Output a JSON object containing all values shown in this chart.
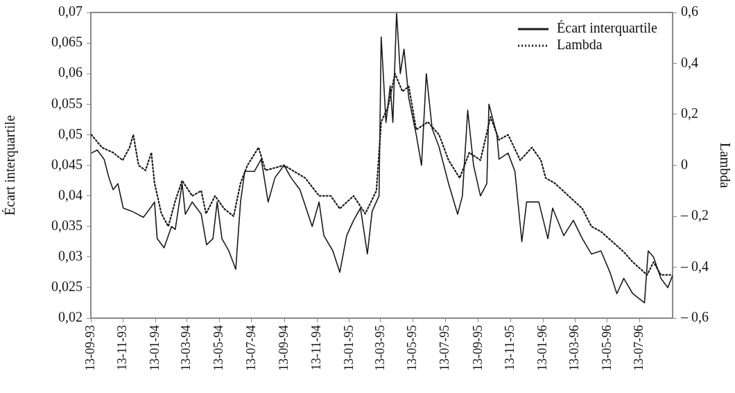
{
  "chart_data": {
    "type": "line",
    "ylabel": "Écart interquartile",
    "y2label": "Lambda",
    "xlim": [
      "1993-09-13",
      "1996-09-13"
    ],
    "xticks": [
      {
        "value": "1993-09-13",
        "label": "13-09-93"
      },
      {
        "value": "1993-11-13",
        "label": "13-11-93"
      },
      {
        "value": "1994-01-13",
        "label": "13-01-94"
      },
      {
        "value": "1994-03-13",
        "label": "13-03-94"
      },
      {
        "value": "1994-05-13",
        "label": "13-05-94"
      },
      {
        "value": "1994-07-13",
        "label": "13-07-94"
      },
      {
        "value": "1994-09-13",
        "label": "13-09-94"
      },
      {
        "value": "1994-11-13",
        "label": "13-11-94"
      },
      {
        "value": "1995-01-13",
        "label": "13-01-95"
      },
      {
        "value": "1995-03-13",
        "label": "13-03-95"
      },
      {
        "value": "1995-05-13",
        "label": "13-05-95"
      },
      {
        "value": "1995-07-13",
        "label": "13-07-95"
      },
      {
        "value": "1995-09-13",
        "label": "13-09-95"
      },
      {
        "value": "1995-11-13",
        "label": "13-11-95"
      },
      {
        "value": "1996-01-13",
        "label": "13-01-96"
      },
      {
        "value": "1996-03-13",
        "label": "13-03-96"
      },
      {
        "value": "1996-05-13",
        "label": "13-05-96"
      },
      {
        "value": "1996-07-13",
        "label": "13-07-96"
      }
    ],
    "ylim": [
      0.02,
      0.07
    ],
    "yticks": [
      {
        "value": 0.02,
        "label": "0,02"
      },
      {
        "value": 0.025,
        "label": "0,025"
      },
      {
        "value": 0.03,
        "label": "0,03"
      },
      {
        "value": 0.035,
        "label": "0,035"
      },
      {
        "value": 0.04,
        "label": "0,04"
      },
      {
        "value": 0.045,
        "label": "0,045"
      },
      {
        "value": 0.05,
        "label": "0,05"
      },
      {
        "value": 0.055,
        "label": "0,055"
      },
      {
        "value": 0.06,
        "label": "0,06"
      },
      {
        "value": 0.065,
        "label": "0,065"
      },
      {
        "value": 0.07,
        "label": "0,07"
      }
    ],
    "y2lim": [
      -0.6,
      0.6
    ],
    "y2ticks": [
      {
        "value": -0.6,
        "label": "– 0,6"
      },
      {
        "value": -0.4,
        "label": "– 0,4"
      },
      {
        "value": -0.2,
        "label": "– 0,2"
      },
      0,
      {
        "value": 0.2,
        "label": "0,2"
      },
      {
        "value": 0.4,
        "label": "0,4"
      },
      {
        "value": 0.6,
        "label": "0,6"
      }
    ],
    "grid": false,
    "legend": "top right",
    "marker": "none",
    "series": [
      {
        "name": "Écart interquartile",
        "color": "#1a1a1a",
        "line_style": "solid",
        "x": [
          "1993-09-14",
          "1993-09-25",
          "1993-10-08",
          "1993-10-17",
          "1993-10-25",
          "1993-11-03",
          "1993-11-13",
          "1993-11-29",
          "1993-12-21",
          "1994-01-03",
          "1994-01-11",
          "1994-01-16",
          "1994-01-29",
          "1994-02-12",
          "1994-02-19",
          "1994-03-04",
          "1994-03-10",
          "1994-03-23",
          "1994-04-09",
          "1994-04-19",
          "1994-05-01",
          "1994-05-09",
          "1994-05-18",
          "1994-05-31",
          "1994-06-13",
          "1994-06-22",
          "1994-06-30",
          "1994-07-18",
          "1994-07-31",
          "1994-08-13",
          "1994-08-26",
          "1994-09-12",
          "1994-09-25",
          "1994-10-12",
          "1994-11-04",
          "1994-11-17",
          "1994-11-26",
          "1994-12-13",
          "1994-12-26",
          "1995-01-08",
          "1995-01-21",
          "1995-02-03",
          "1995-02-16",
          "1995-02-25",
          "1995-03-10",
          "1995-03-14",
          "1995-03-23",
          "1995-03-31",
          "1995-04-05",
          "1995-04-12",
          "1995-04-19",
          "1995-04-26",
          "1995-05-05",
          "1995-05-19",
          "1995-05-29",
          "1995-06-07",
          "1995-06-18",
          "1995-07-01",
          "1995-07-19",
          "1995-08-05",
          "1995-08-14",
          "1995-08-24",
          "1995-09-04",
          "1995-09-17",
          "1995-09-29",
          "1995-10-03",
          "1995-10-18",
          "1995-10-22",
          "1995-11-08",
          "1995-11-21",
          "1995-12-04",
          "1995-12-13",
          "1996-01-05",
          "1996-01-22",
          "1996-01-31",
          "1996-02-21",
          "1996-03-10",
          "1996-03-27",
          "1996-04-13",
          "1996-05-01",
          "1996-05-18",
          "1996-05-31",
          "1996-06-13",
          "1996-06-30",
          "1996-07-22",
          "1996-07-29",
          "1996-08-08",
          "1996-08-22",
          "1996-09-04",
          "1996-09-13"
        ],
        "values": [
          0.047,
          0.0475,
          0.046,
          0.043,
          0.041,
          0.042,
          0.038,
          0.0375,
          0.0365,
          0.038,
          0.039,
          0.033,
          0.0315,
          0.035,
          0.0345,
          0.042,
          0.037,
          0.039,
          0.037,
          0.032,
          0.033,
          0.039,
          0.033,
          0.031,
          0.028,
          0.039,
          0.044,
          0.044,
          0.046,
          0.039,
          0.043,
          0.045,
          0.043,
          0.041,
          0.035,
          0.039,
          0.0335,
          0.031,
          0.0275,
          0.0335,
          0.036,
          0.038,
          0.0305,
          0.0375,
          0.04,
          0.066,
          0.052,
          0.058,
          0.052,
          0.07,
          0.06,
          0.064,
          0.056,
          0.05,
          0.045,
          0.06,
          0.051,
          0.048,
          0.042,
          0.037,
          0.04,
          0.054,
          0.045,
          0.04,
          0.042,
          0.055,
          0.05,
          0.046,
          0.047,
          0.044,
          0.0325,
          0.039,
          0.039,
          0.033,
          0.038,
          0.0335,
          0.036,
          0.033,
          0.0305,
          0.031,
          0.0275,
          0.024,
          0.0265,
          0.024,
          0.0225,
          0.031,
          0.03,
          0.0265,
          0.025,
          0.027
        ]
      },
      {
        "name": "Lambda",
        "color": "#1a1a1a",
        "line_style": "dotted",
        "axis": "y2",
        "x": [
          "1993-09-14",
          "1993-10-04",
          "1993-10-25",
          "1993-11-12",
          "1993-11-25",
          "1993-12-02",
          "1993-12-12",
          "1993-12-25",
          "1994-01-05",
          "1994-01-11",
          "1994-01-24",
          "1994-02-06",
          "1994-02-19",
          "1994-03-04",
          "1994-03-23",
          "1994-04-09",
          "1994-04-18",
          "1994-05-05",
          "1994-05-22",
          "1994-06-09",
          "1994-06-22",
          "1994-07-05",
          "1994-07-26",
          "1994-08-08",
          "1994-09-12",
          "1994-10-22",
          "1994-11-17",
          "1994-12-09",
          "1994-12-26",
          "1995-01-21",
          "1995-02-12",
          "1995-03-05",
          "1995-03-14",
          "1995-03-27",
          "1995-04-09",
          "1995-04-23",
          "1995-05-05",
          "1995-05-19",
          "1995-06-10",
          "1995-07-01",
          "1995-07-19",
          "1995-08-09",
          "1995-08-27",
          "1995-09-17",
          "1995-10-06",
          "1995-10-22",
          "1995-11-08",
          "1995-12-01",
          "1995-12-23",
          "1996-01-09",
          "1996-01-18",
          "1996-02-04",
          "1996-03-01",
          "1996-03-27",
          "1996-04-13",
          "1996-05-01",
          "1996-05-28",
          "1996-06-13",
          "1996-06-30",
          "1996-07-27",
          "1996-08-08",
          "1996-08-22",
          "1996-09-09"
        ],
        "values": [
          0.12,
          0.07,
          0.05,
          0.02,
          0.07,
          0.12,
          0,
          -0.02,
          0.05,
          -0.07,
          -0.19,
          -0.24,
          -0.14,
          -0.06,
          -0.12,
          -0.1,
          -0.19,
          -0.12,
          -0.17,
          -0.2,
          -0.07,
          0,
          0.07,
          -0.02,
          0,
          -0.05,
          -0.12,
          -0.12,
          -0.17,
          -0.12,
          -0.19,
          -0.1,
          0.17,
          0.23,
          0.36,
          0.29,
          0.31,
          0.14,
          0.17,
          0.12,
          0.02,
          -0.05,
          0.05,
          0.02,
          0.19,
          0.1,
          0.12,
          0.02,
          0.07,
          0.02,
          -0.05,
          -0.07,
          -0.12,
          -0.17,
          -0.24,
          -0.26,
          -0.31,
          -0.34,
          -0.38,
          -0.43,
          -0.38,
          -0.43,
          -0.43
        ]
      }
    ]
  }
}
